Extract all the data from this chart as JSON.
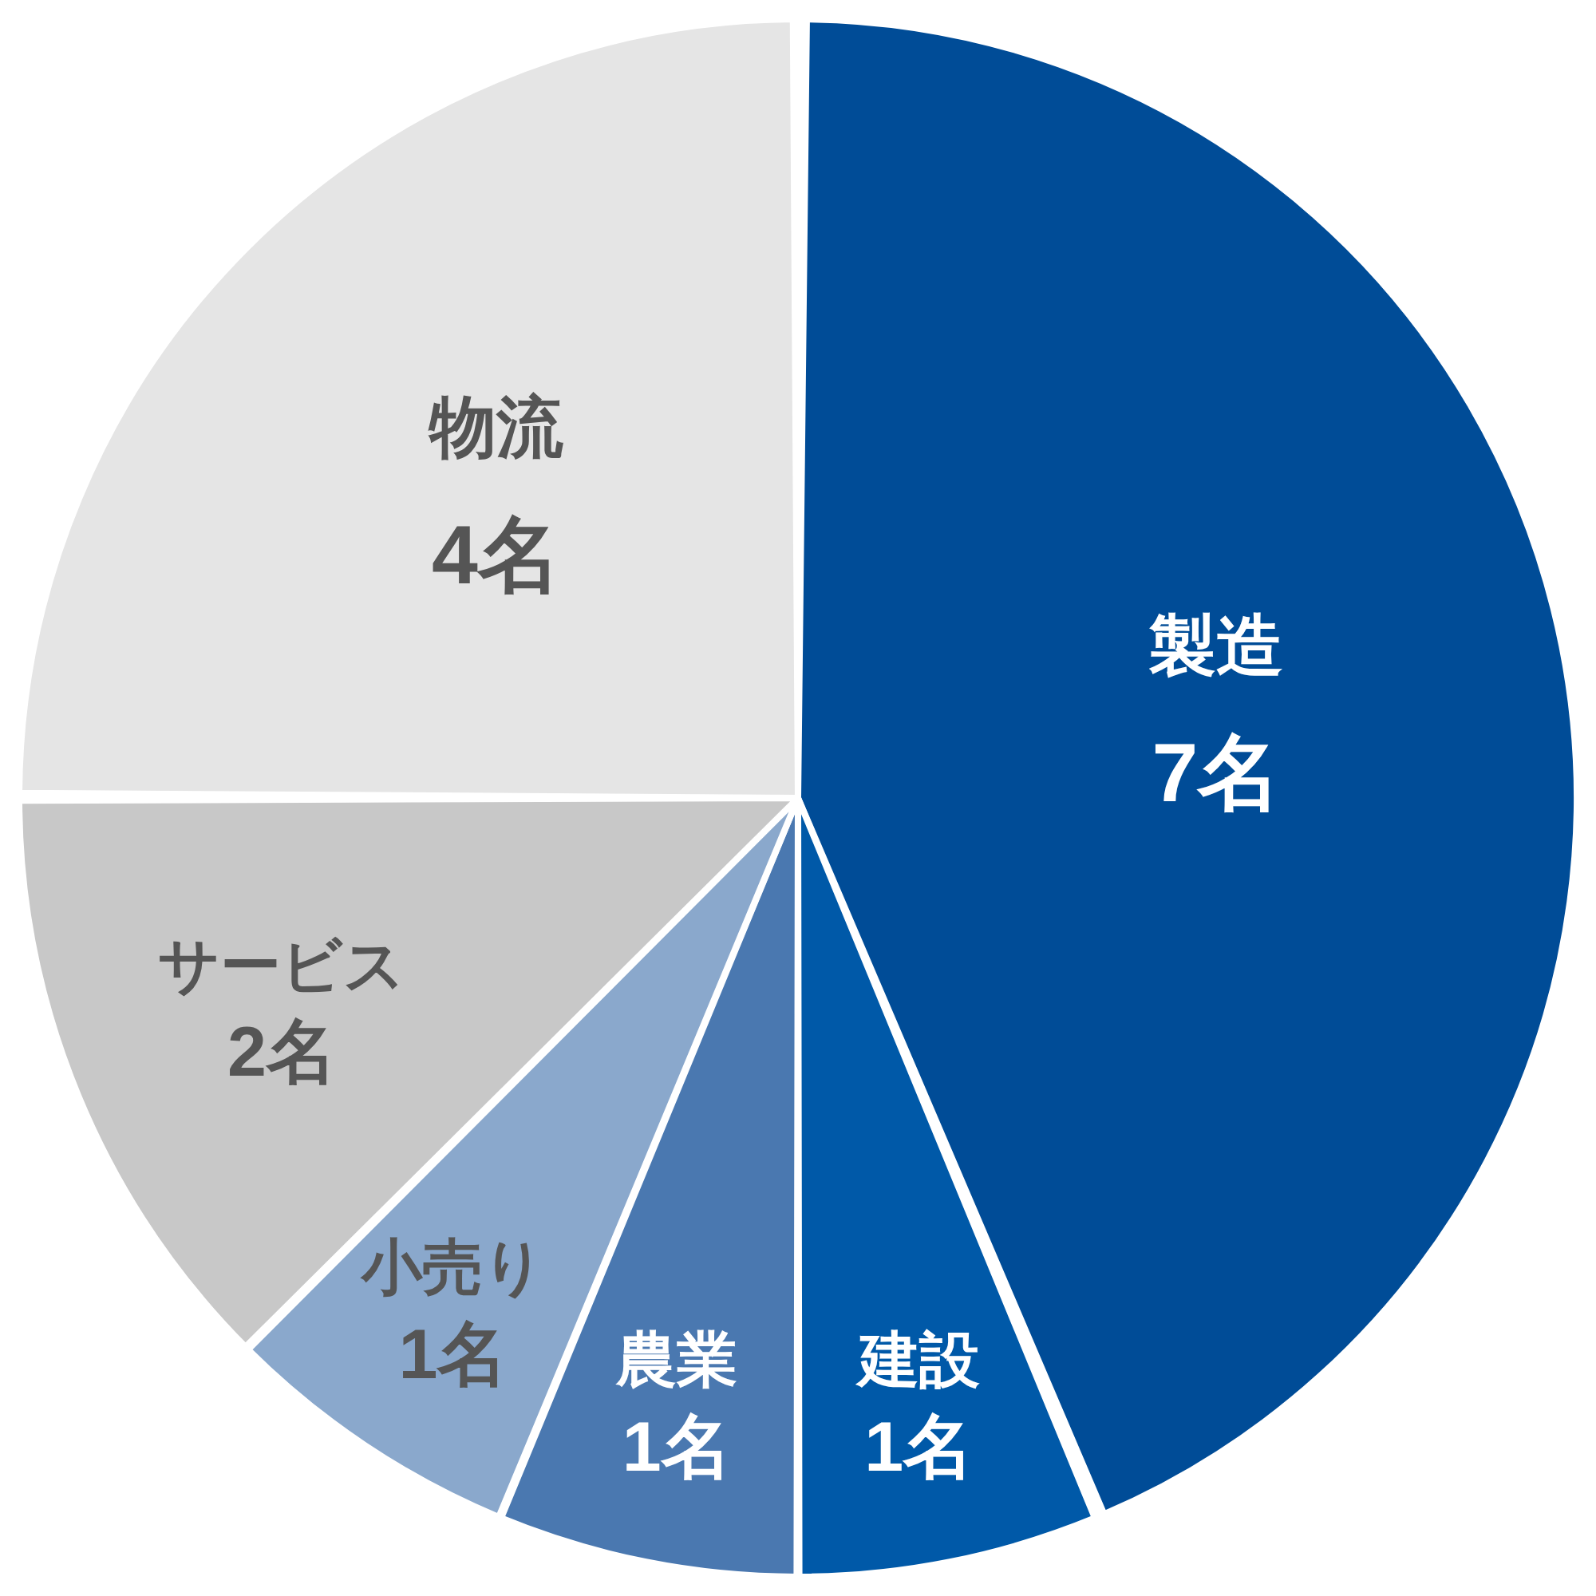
{
  "chart_data": {
    "type": "pie",
    "categories": [
      "製造",
      "建設",
      "農業",
      "小売り",
      "サービス",
      "物流"
    ],
    "values": [
      7,
      1,
      1,
      1,
      2,
      4
    ],
    "value_labels": [
      "7名",
      "1名",
      "1名",
      "1名",
      "2名",
      "4名"
    ],
    "colors": [
      "#004c97",
      "#0059a8",
      "#4a78b0",
      "#8aa8cc",
      "#c8c8c8",
      "#e5e5e5"
    ],
    "legend": false
  }
}
